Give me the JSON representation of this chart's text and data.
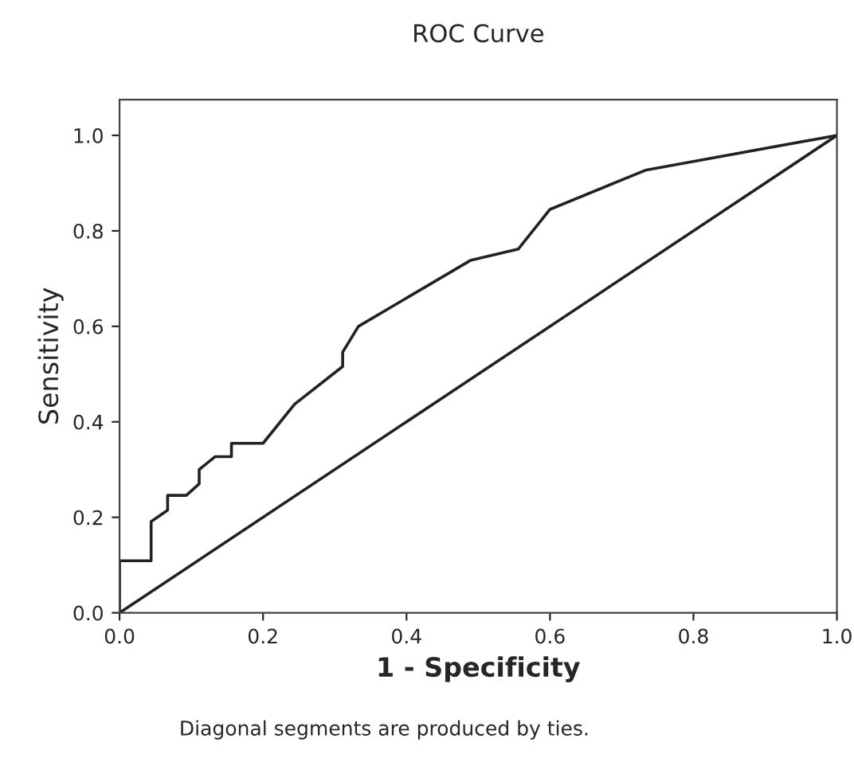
{
  "chart_data": {
    "type": "line",
    "title": "ROC Curve",
    "xlabel": "1 - Specificity",
    "ylabel": "Sensitivity",
    "annotations": [
      "Diagonal segments are produced by ties."
    ],
    "series": [
      {
        "color": "#222222",
        "x": [
          0,
          0,
          0.044,
          0.044,
          0.067,
          0.067,
          0.093,
          0.111,
          0.111,
          0.133,
          0.156,
          0.156,
          0.2,
          0.244,
          0.311,
          0.311,
          0.333,
          0.489,
          0.556,
          0.6,
          0.733,
          1
        ],
        "values": [
          0,
          0.109,
          0.109,
          0.191,
          0.215,
          0.246,
          0.246,
          0.27,
          0.3,
          0.327,
          0.327,
          0.355,
          0.355,
          0.437,
          0.516,
          0.546,
          0.6,
          0.738,
          0.762,
          0.845,
          0.927,
          1
        ]
      },
      {
        "color": "#222222",
        "x": [
          0,
          1
        ],
        "values": [
          0,
          1
        ]
      }
    ],
    "xlim": [
      0,
      1
    ],
    "ylim": [
      0,
      1.075
    ],
    "xticks": [
      {
        "value": 0,
        "label": "0.0"
      },
      {
        "value": 0.2,
        "label": "0.2"
      },
      {
        "value": 0.4,
        "label": "0.4"
      },
      {
        "value": 0.6,
        "label": "0.6"
      },
      {
        "value": 0.8,
        "label": "0.8"
      },
      {
        "value": 1,
        "label": "1.0"
      }
    ],
    "yticks": [
      {
        "value": 0,
        "label": "0.0"
      },
      {
        "value": 0.2,
        "label": "0.2"
      },
      {
        "value": 0.4,
        "label": "0.4"
      },
      {
        "value": 0.6,
        "label": "0.6"
      },
      {
        "value": 0.8,
        "label": "0.8"
      },
      {
        "value": 1,
        "label": "1.0"
      }
    ],
    "grid": false,
    "legend": false,
    "marker": "none",
    "line_style": "solid"
  }
}
